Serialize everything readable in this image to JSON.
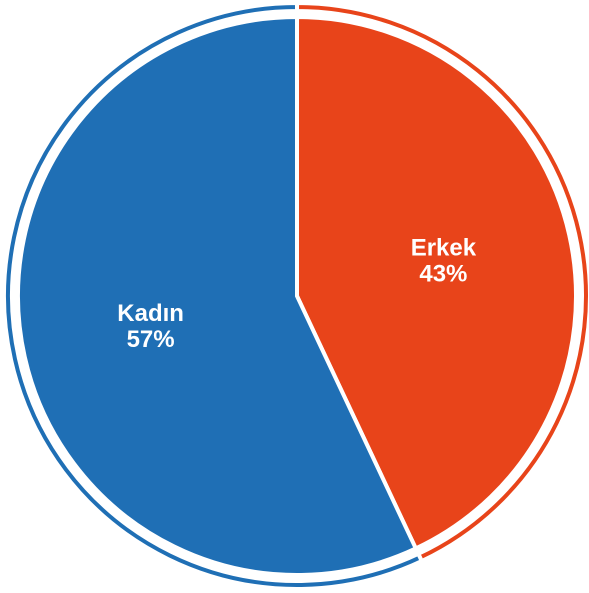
{
  "chart_data": {
    "type": "pie",
    "categories": [
      "Erkek",
      "Kadın"
    ],
    "values": [
      43,
      57
    ],
    "value_labels": [
      "43%",
      "57%"
    ],
    "colors": [
      "#e8441a",
      "#1f6fb5"
    ]
  }
}
